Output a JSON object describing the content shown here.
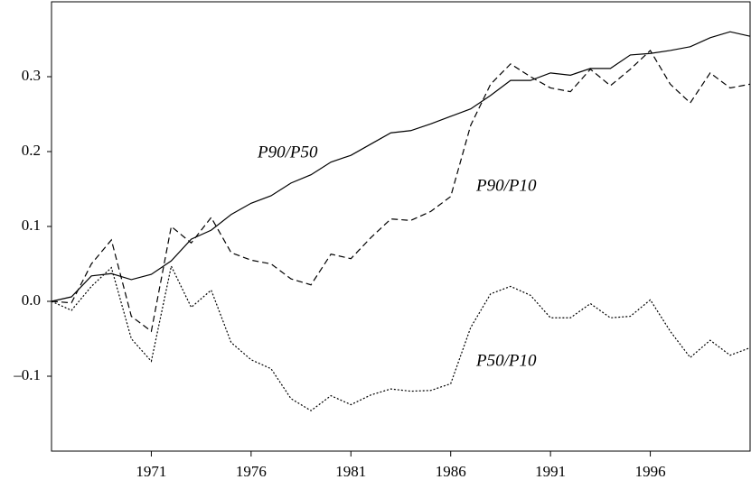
{
  "chart_data": {
    "type": "line",
    "x": [
      1966,
      1967,
      1968,
      1969,
      1970,
      1971,
      1972,
      1973,
      1974,
      1975,
      1976,
      1977,
      1978,
      1979,
      1980,
      1981,
      1982,
      1983,
      1984,
      1985,
      1986,
      1987,
      1988,
      1989,
      1990,
      1991,
      1992,
      1993,
      1994,
      1995,
      1996,
      1997,
      1998,
      1999,
      2000,
      2001
    ],
    "series": [
      {
        "name": "P90/P50",
        "color": "#000000",
        "linestyle": "solid",
        "values": [
          0,
          0.006,
          0.034,
          0.037,
          0.029,
          0.036,
          0.054,
          0.083,
          0.095,
          0.116,
          0.131,
          0.141,
          0.158,
          0.169,
          0.186,
          0.195,
          0.21,
          0.225,
          0.228,
          0.237,
          0.247,
          0.257,
          0.275,
          0.295,
          0.295,
          0.305,
          0.302,
          0.311,
          0.311,
          0.329,
          0.331,
          0.335,
          0.34,
          0.352,
          0.36,
          0.354
        ]
      },
      {
        "name": "P90/P10",
        "color": "#000000",
        "linestyle": "dashed",
        "values": [
          0,
          -0.002,
          0.05,
          0.082,
          -0.02,
          -0.04,
          0.1,
          0.078,
          0.112,
          0.065,
          0.055,
          0.05,
          0.03,
          0.022,
          0.063,
          0.057,
          0.085,
          0.11,
          0.108,
          0.12,
          0.14,
          0.235,
          0.29,
          0.317,
          0.3,
          0.285,
          0.28,
          0.31,
          0.288,
          0.31,
          0.335,
          0.29,
          0.265,
          0.305,
          0.285,
          0.29
        ]
      },
      {
        "name": "P50/P10",
        "color": "#000000",
        "linestyle": "dotted",
        "values": [
          0,
          -0.012,
          0.02,
          0.045,
          -0.05,
          -0.08,
          0.047,
          -0.008,
          0.015,
          -0.055,
          -0.078,
          -0.09,
          -0.13,
          -0.146,
          -0.126,
          -0.138,
          -0.125,
          -0.117,
          -0.12,
          -0.119,
          -0.11,
          -0.035,
          0.01,
          0.02,
          0.008,
          -0.022,
          -0.022,
          -0.003,
          -0.022,
          -0.02,
          0.002,
          -0.04,
          -0.075,
          -0.052,
          -0.072,
          -0.062
        ]
      }
    ],
    "xlim": [
      1966,
      2001
    ],
    "xticks": [
      1971,
      1976,
      1981,
      1986,
      1991,
      1996
    ],
    "ylim": [
      -0.2,
      0.4
    ],
    "yticks": [
      {
        "value": -0.1,
        "label": "–0.1"
      },
      {
        "value": 0,
        "label": "0.0"
      },
      0.1,
      0.2,
      0.3
    ],
    "grid": false
  }
}
